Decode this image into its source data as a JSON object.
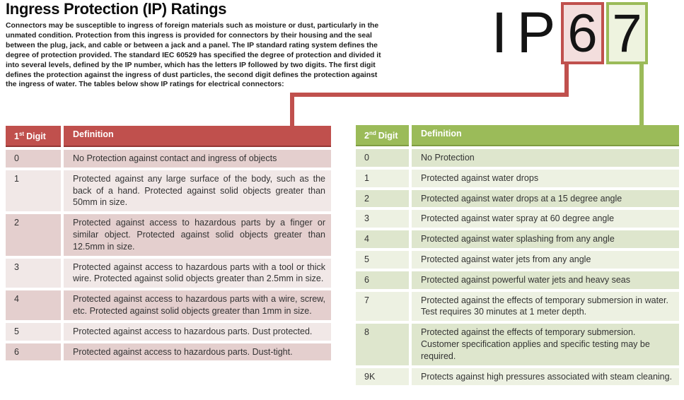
{
  "title": "Ingress Protection (IP) Ratings",
  "intro": "Connectors may be susceptible to ingress of foreign materials such as moisture or dust, particularly in the unmated condition. Protection from this ingress is provided for connectors by their housing and the seal between the plug, jack, and cable or between a jack and a panel. The IP standard rating system defines the degree of protection provided. The standard IEC 60529 has specified the degree of protection and divided it into several levels, defined by the IP number, which has the letters IP followed by two digits. The first digit defines the protection against the ingress of dust particles, the second digit defines the protection against the ingress of water. The tables below show IP ratings for electrical connectors:",
  "ip_graphic": {
    "letter_i": "I",
    "letter_p": "P",
    "first_digit": "6",
    "second_digit": "7"
  },
  "colors": {
    "red_accent": "#c0504d",
    "red_dark_underline": "#943634",
    "red_band_dark": "#e4cfce",
    "red_band_light": "#f1e8e7",
    "red_box_fill": "#f3dedd",
    "green_accent": "#9bbb59",
    "green_dark_underline": "#7e9c42",
    "green_band_dark": "#dee6cd",
    "green_band_light": "#edf1e2",
    "green_box_fill": "#eef3df"
  },
  "first_table": {
    "header": {
      "digit_base": "1",
      "digit_sup": "st",
      "digit_word": "Digit",
      "definition": "Definition"
    },
    "rows": [
      {
        "digit": "0",
        "definition": "No Protection against contact and ingress of objects"
      },
      {
        "digit": "1",
        "definition": "Protected against any large surface of the body, such as the back of a hand. Protected against solid objects greater than 50mm in size."
      },
      {
        "digit": "2",
        "definition": "Protected against access to hazardous parts by a finger or similar object. Protected against solid objects greater than 12.5mm in size."
      },
      {
        "digit": "3",
        "definition": "Protected against access to hazardous parts with a tool or thick wire. Protected against solid objects greater than 2.5mm in size."
      },
      {
        "digit": "4",
        "definition": "Protected against access to hazardous parts with a wire, screw, etc. Protected against solid objects greater than 1mm in size."
      },
      {
        "digit": "5",
        "definition": "Protected against access to hazardous parts. Dust protected."
      },
      {
        "digit": "6",
        "definition": "Protected against access to hazardous parts. Dust-tight."
      }
    ]
  },
  "second_table": {
    "header": {
      "digit_base": "2",
      "digit_sup": "nd",
      "digit_word": "Digit",
      "definition": "Definition"
    },
    "rows": [
      {
        "digit": "0",
        "definition": "No Protection"
      },
      {
        "digit": "1",
        "definition": "Protected against water drops"
      },
      {
        "digit": "2",
        "definition": "Protected against water drops at a 15 degree angle"
      },
      {
        "digit": "3",
        "definition": "Protected against water spray at 60 degree angle"
      },
      {
        "digit": "4",
        "definition": "Protected against water splashing from any angle"
      },
      {
        "digit": "5",
        "definition": "Protected against water jets from any angle"
      },
      {
        "digit": "6",
        "definition": "Protected against powerful water jets and heavy seas"
      },
      {
        "digit": "7",
        "definition": "Protected against the effects of temporary submersion in water. Test requires 30 minutes at 1 meter depth."
      },
      {
        "digit": "8",
        "definition": "Protected against the effects of temporary submersion. Customer specification applies and specific testing may be required."
      },
      {
        "digit": "9K",
        "definition": "Protects against high pressures associated with steam cleaning."
      }
    ]
  }
}
